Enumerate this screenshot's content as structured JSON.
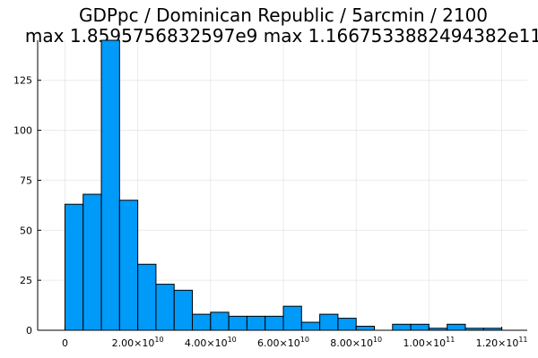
{
  "chart_data": {
    "type": "bar",
    "title_line1": "GDPpc / Dominican Republic / 5arcmin / 2100",
    "title_line2": "max 1.8595756832597e9  max 1.1667533882494382e11",
    "bin_width": 5000000000,
    "bin_start": 0,
    "values": [
      63,
      68,
      145,
      65,
      33,
      23,
      20,
      8,
      9,
      7,
      7,
      7,
      12,
      4,
      8,
      6,
      2,
      0,
      3,
      3,
      1,
      3,
      1,
      1
    ],
    "xlim": [
      -7500000000,
      127000000000
    ],
    "ylim": [
      0,
      145
    ],
    "y_ticks": [
      0,
      25,
      50,
      75,
      100,
      125
    ],
    "y_tick_labels": [
      "0",
      "25",
      "50",
      "75",
      "100",
      "125"
    ],
    "x_ticks": [
      {
        "value": 0,
        "label": "0",
        "exp": ""
      },
      {
        "value": 20000000000,
        "label": "2.00×10",
        "exp": "10"
      },
      {
        "value": 40000000000,
        "label": "4.00×10",
        "exp": "10"
      },
      {
        "value": 60000000000,
        "label": "6.00×10",
        "exp": "10"
      },
      {
        "value": 80000000000,
        "label": "8.00×10",
        "exp": "10"
      },
      {
        "value": 100000000000,
        "label": "1.00×10",
        "exp": "11"
      },
      {
        "value": 120000000000,
        "label": "1.20×10",
        "exp": "11"
      }
    ],
    "grid": true,
    "legend": "none",
    "bar_color": "#009af9"
  }
}
